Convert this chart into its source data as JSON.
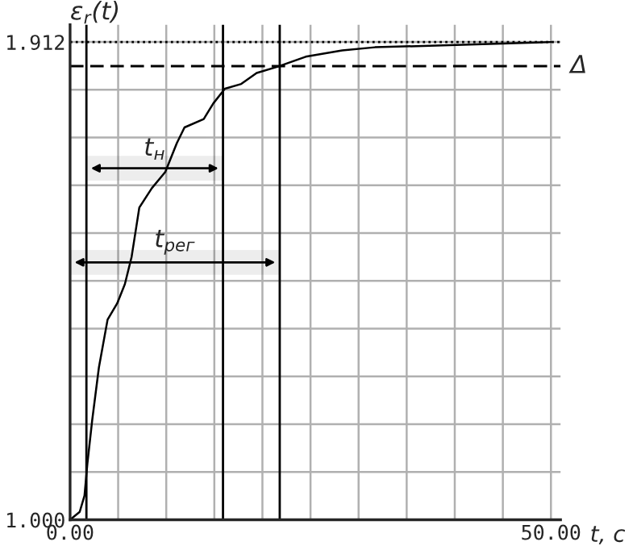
{
  "chart_data": {
    "type": "line",
    "xlabel": "t, c",
    "ylabel": "ε$_{r}$(t)",
    "x": [
      0,
      1.0,
      1.5,
      1.8,
      2.3,
      3.0,
      3.9,
      4.9,
      5.7,
      6.4,
      7.2,
      8.5,
      9.9,
      11.1,
      11.9,
      13.9,
      14.9,
      16.1,
      17.8,
      19.4,
      21.6,
      24.5,
      28.3,
      31.7,
      37.4,
      48.4,
      50
    ],
    "series": [
      {
        "color": "#000000",
        "values": [
          1.0,
          1.015,
          1.046,
          1.107,
          1.19,
          1.291,
          1.382,
          1.413,
          1.45,
          1.502,
          1.596,
          1.633,
          1.664,
          1.719,
          1.749,
          1.765,
          1.795,
          1.823,
          1.832,
          1.853,
          1.865,
          1.884,
          1.896,
          1.902,
          1.905,
          1.911,
          1.912
        ]
      }
    ],
    "xlim": [
      0,
      51
    ],
    "xticks": [
      {
        "value": 0,
        "label": "0.00"
      },
      {
        "value": 5,
        "label": null
      },
      {
        "value": 10,
        "label": null
      },
      {
        "value": 15,
        "label": null
      },
      {
        "value": 20,
        "label": null
      },
      {
        "value": 25,
        "label": null
      },
      {
        "value": 30,
        "label": null
      },
      {
        "value": 35,
        "label": null
      },
      {
        "value": 40,
        "label": null
      },
      {
        "value": 45,
        "label": null
      },
      {
        "value": 50,
        "label": "50.00"
      }
    ],
    "ylim": [
      1.0,
      1.945
    ],
    "yticks": [
      {
        "value": 1.0,
        "label": "1.000"
      },
      {
        "value": 1.0912,
        "label": null
      },
      {
        "value": 1.1824,
        "label": null
      },
      {
        "value": 1.2736,
        "label": null
      },
      {
        "value": 1.3648,
        "label": null
      },
      {
        "value": 1.456,
        "label": null
      },
      {
        "value": 1.5472,
        "label": null
      },
      {
        "value": 1.6384,
        "label": null
      },
      {
        "value": 1.7296,
        "label": null
      },
      {
        "value": 1.8208,
        "label": null
      },
      {
        "value": 1.912,
        "label": "1.912"
      }
    ],
    "ref_lines": [
      {
        "axis": "y",
        "value": 1.912,
        "line_style": "dotted",
        "color": "#000000"
      },
      {
        "axis": "y",
        "value": 1.866,
        "label": "Δ",
        "line_style": "dashed",
        "color": "#000000"
      },
      {
        "axis": "x",
        "value": 1.7,
        "color": "#000000",
        "line_style": "solid"
      },
      {
        "axis": "x",
        "value": 15.9,
        "color": "#000000",
        "line_style": "solid"
      },
      {
        "axis": "x",
        "value": 21.8,
        "color": "#000000",
        "line_style": "solid"
      }
    ],
    "bands": [
      {
        "axis": "x",
        "from": 1.7,
        "to": 15.9,
        "label": "t$_{н}$"
      },
      {
        "axis": "x",
        "from": 0,
        "to": 21.8,
        "label": "t$_{рег}$"
      }
    ],
    "grid": true,
    "marker": "none",
    "line_style": "solid"
  }
}
